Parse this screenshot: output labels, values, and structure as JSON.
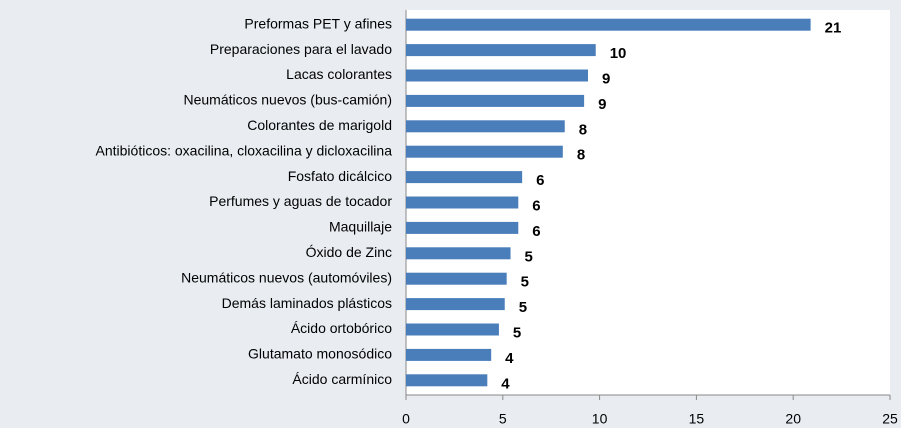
{
  "chart_data": {
    "type": "hbar",
    "categories": [
      "Preformas PET y afines",
      "Preparaciones para el lavado",
      "Lacas colorantes",
      "Neumáticos nuevos (bus-camión)",
      "Colorantes de marigold",
      "Antibióticos: oxacilina, cloxacilina y dicloxacilina",
      "Fosfato dicálcico",
      "Perfumes y aguas de tocador",
      "Maquillaje",
      "Óxido de Zinc",
      "Neumáticos nuevos (automóviles)",
      "Demás laminados plásticos",
      "Ácido ortobórico",
      "Glutamato monosódico",
      "Ácido carmínico"
    ],
    "values": [
      20.9,
      9.8,
      9.4,
      9.2,
      8.2,
      8.1,
      6.0,
      5.8,
      5.8,
      5.4,
      5.2,
      5.1,
      4.8,
      4.4,
      4.2
    ],
    "value_labels": [
      "21",
      "10",
      "9",
      "9",
      "8",
      "8",
      "6",
      "6",
      "6",
      "5",
      "5",
      "5",
      "5",
      "4",
      "4"
    ],
    "color": "#4a7ebb",
    "xlim": [
      0,
      25
    ],
    "xticks": [
      0,
      5,
      10,
      15,
      20,
      25
    ],
    "grid": false
  }
}
